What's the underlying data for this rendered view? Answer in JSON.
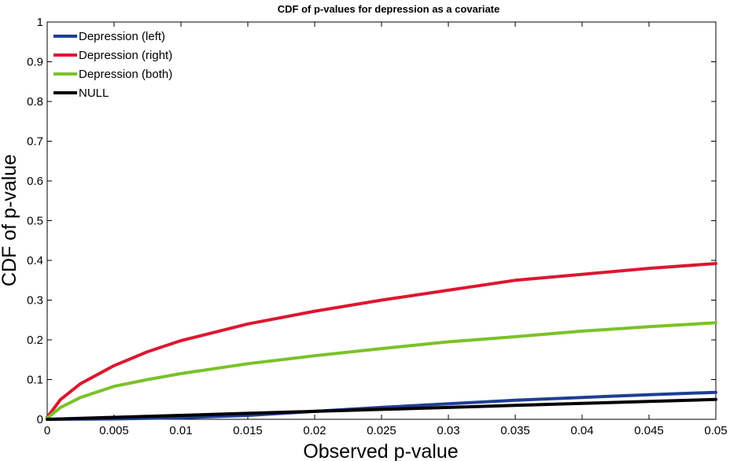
{
  "chart_data": {
    "type": "line",
    "title": "CDF of p-values for depression as a covariate",
    "xlabel": "Observed p-value",
    "ylabel": "CDF of p-value",
    "xlim": [
      0,
      0.05
    ],
    "ylim": [
      0,
      1
    ],
    "x_ticks": [
      "0",
      "0.005",
      "0.01",
      "0.015",
      "0.02",
      "0.025",
      "0.03",
      "0.035",
      "0.04",
      "0.045",
      "0.05"
    ],
    "y_ticks": [
      "0",
      "0.1",
      "0.2",
      "0.3",
      "0.4",
      "0.5",
      "0.6",
      "0.7",
      "0.8",
      "0.9",
      "1"
    ],
    "grid": false,
    "legend_position": "top-left",
    "series": [
      {
        "name": "Depression (left)",
        "color": "#1f3f94",
        "x": [
          0,
          0.005,
          0.01,
          0.015,
          0.02,
          0.025,
          0.03,
          0.035,
          0.04,
          0.045,
          0.05
        ],
        "y": [
          0,
          0.001,
          0.004,
          0.01,
          0.02,
          0.03,
          0.039,
          0.048,
          0.055,
          0.062,
          0.068
        ]
      },
      {
        "name": "Depression (right)",
        "color": "#dd1730",
        "x": [
          0,
          0.001,
          0.0025,
          0.005,
          0.0075,
          0.01,
          0.015,
          0.02,
          0.025,
          0.03,
          0.035,
          0.04,
          0.045,
          0.05
        ],
        "y": [
          0.005,
          0.05,
          0.09,
          0.135,
          0.17,
          0.198,
          0.24,
          0.272,
          0.3,
          0.325,
          0.35,
          0.365,
          0.38,
          0.392
        ]
      },
      {
        "name": "Depression (both)",
        "color": "#7bc12a",
        "x": [
          0,
          0.001,
          0.0025,
          0.005,
          0.0075,
          0.01,
          0.015,
          0.02,
          0.025,
          0.03,
          0.035,
          0.04,
          0.045,
          0.05
        ],
        "y": [
          0.003,
          0.03,
          0.055,
          0.083,
          0.1,
          0.115,
          0.14,
          0.16,
          0.178,
          0.195,
          0.208,
          0.222,
          0.233,
          0.243
        ]
      },
      {
        "name": "NULL",
        "color": "#000000",
        "x": [
          0,
          0.005,
          0.01,
          0.015,
          0.02,
          0.025,
          0.03,
          0.035,
          0.04,
          0.045,
          0.05
        ],
        "y": [
          0,
          0.005,
          0.01,
          0.015,
          0.02,
          0.025,
          0.03,
          0.035,
          0.04,
          0.045,
          0.05
        ]
      }
    ]
  }
}
